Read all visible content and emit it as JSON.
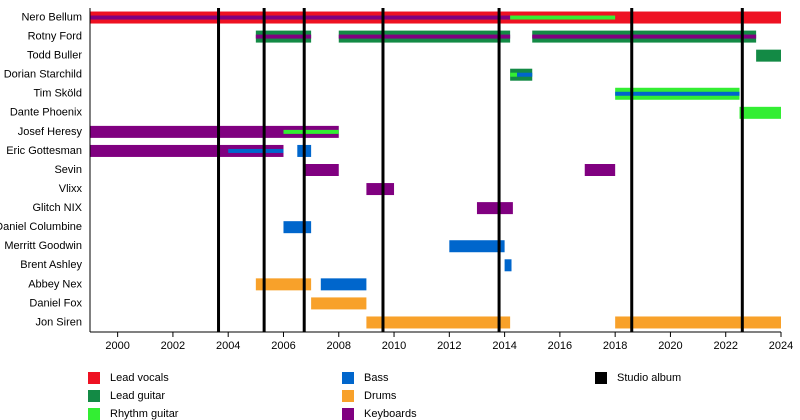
{
  "chart_data": {
    "type": "timeline",
    "categories": [
      "Nero Bellum",
      "Rotny Ford",
      "Todd Buller",
      "Dorian Starchild",
      "Tim Sköld",
      "Dante Phoenix",
      "Josef Heresy",
      "Eric Gottesman",
      "Sevin",
      "Vlixx",
      "Glitch NIX",
      "Daniel Columbine",
      "Merritt Goodwin",
      "Brent Ashley",
      "Abbey Nex",
      "Daniel Fox",
      "Jon Siren"
    ],
    "series": [
      {
        "name": "Lead vocals",
        "color": "#ee1122",
        "values": [
          [
            [
              1999,
              2024
            ]
          ],
          [],
          [],
          [],
          [],
          [],
          [],
          [],
          [],
          [],
          [],
          [],
          [],
          [],
          [],
          [],
          []
        ]
      },
      {
        "name": "Lead guitar",
        "color": "#138a45",
        "values": [
          [
            [
              2007,
              2014.2
            ]
          ],
          [
            [
              2005,
              2007
            ],
            [
              2008,
              2014.2
            ],
            [
              2015,
              2023.1
            ]
          ],
          [
            [
              2023.1,
              2024
            ]
          ],
          [
            [
              2014.2,
              2015
            ]
          ],
          [],
          [],
          [],
          [],
          [],
          [],
          [],
          [],
          [],
          [],
          [],
          [],
          []
        ]
      },
      {
        "name": "Rhythm guitar",
        "color": "#33ee33",
        "values": [
          [
            [
              2005,
              2018
            ]
          ],
          [],
          [],
          [
            [
              2014.2,
              2014.45
            ]
          ],
          [
            [
              2018,
              2022.5
            ]
          ],
          [
            [
              2022.5,
              2024
            ]
          ],
          [
            [
              2006,
              2008
            ]
          ],
          [],
          [],
          [],
          [],
          [],
          [],
          [],
          [],
          [],
          []
        ]
      },
      {
        "name": "Bass",
        "color": "#0066cc",
        "values": [
          [],
          [],
          [],
          [
            [
              2014.45,
              2015
            ]
          ],
          [
            [
              2018,
              2022.5
            ]
          ],
          [],
          [],
          [
            [
              2004,
              2006
            ],
            [
              2006.5,
              2007
            ]
          ],
          [],
          [],
          [],
          [
            [
              2006,
              2007
            ]
          ],
          [
            [
              2012,
              2014
            ]
          ],
          [
            [
              2014,
              2014.25
            ]
          ],
          [
            [
              2007.35,
              2009
            ]
          ],
          [],
          []
        ]
      },
      {
        "name": "Drums",
        "color": "#f8a12a",
        "values": [
          [],
          [],
          [],
          [],
          [],
          [],
          [],
          [],
          [],
          [],
          [],
          [],
          [],
          [],
          [
            [
              2005,
              2007
            ]
          ],
          [
            [
              2007,
              2009
            ]
          ],
          [
            [
              2009,
              2014.2
            ],
            [
              2018,
              2024
            ]
          ]
        ]
      },
      {
        "name": "Keyboards",
        "color": "#800080",
        "values": [
          [
            [
              1999,
              2014.2
            ]
          ],
          [
            [
              2005,
              2007
            ],
            [
              2008,
              2014.2
            ],
            [
              2015,
              2023.1
            ]
          ],
          [],
          [],
          [],
          [],
          [
            [
              1999,
              2008
            ]
          ],
          [
            [
              1999,
              2006
            ]
          ],
          [
            [
              2006.75,
              2008
            ],
            [
              2016.9,
              2018
            ]
          ],
          [
            [
              2009,
              2010
            ]
          ],
          [
            [
              2013,
              2014.3
            ]
          ],
          [],
          [],
          [],
          [],
          [],
          []
        ]
      }
    ],
    "events": {
      "name": "Studio album",
      "color": "#000000",
      "values": [
        2003.65,
        2005.3,
        2006.75,
        2009.6,
        2013.8,
        2018.6,
        2022.6
      ]
    },
    "xlim": [
      1999,
      2024
    ],
    "xticks": [
      2000,
      2002,
      2004,
      2006,
      2008,
      2010,
      2012,
      2014,
      2016,
      2018,
      2020,
      2022,
      2024
    ]
  }
}
